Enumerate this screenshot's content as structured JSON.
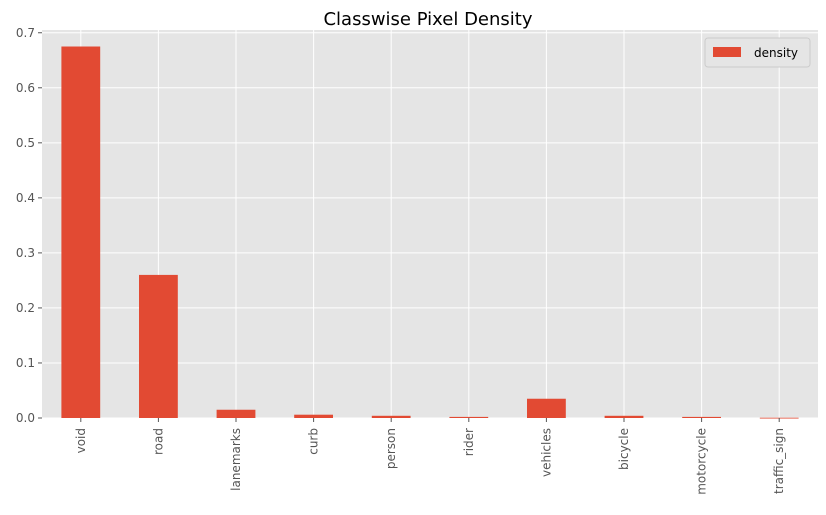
{
  "chart_data": {
    "type": "bar",
    "title": "Classwise Pixel Density",
    "categories": [
      "void",
      "road",
      "lanemarks",
      "curb",
      "person",
      "rider",
      "vehicles",
      "bicycle",
      "motorcycle",
      "traffic_sign"
    ],
    "series": [
      {
        "name": "density",
        "values": [
          0.675,
          0.26,
          0.015,
          0.006,
          0.004,
          0.002,
          0.035,
          0.004,
          0.002,
          0.0005
        ],
        "color": "#E24A33"
      }
    ],
    "ylim": [
      0,
      0.705
    ],
    "yticks": [
      "0.0",
      "0.1",
      "0.2",
      "0.3",
      "0.4",
      "0.5",
      "0.6",
      "0.7"
    ],
    "grid": true,
    "legend_position": "top-right",
    "background_color": "#E5E5E5",
    "grid_color": "#FFFFFF"
  }
}
